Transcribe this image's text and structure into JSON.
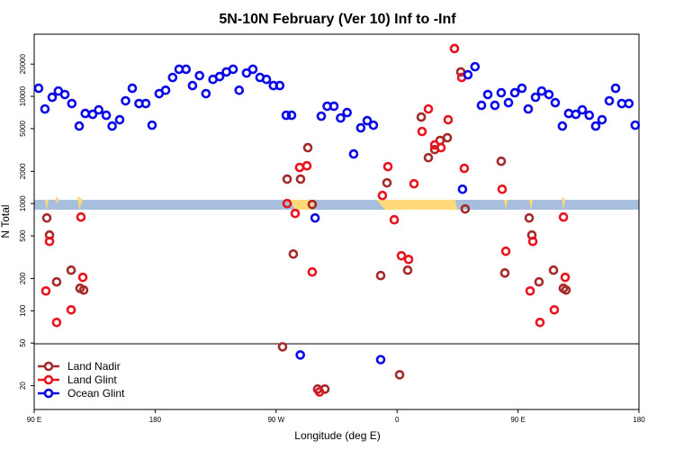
{
  "chart_data": {
    "type": "scatter",
    "title": "5N-10N February (Ver 10)   Inf to -Inf",
    "x_label": "Longitude (deg E)",
    "y_label": "N Total",
    "xlim": [
      90,
      540
    ],
    "ylim": [
      12,
      38000
    ],
    "y_scale": "log",
    "legend": "bottom-left",
    "xticks": [
      {
        "value": 90,
        "label": "90 E"
      },
      {
        "value": 180,
        "label": "180"
      },
      {
        "value": 270,
        "label": "90 W"
      },
      {
        "value": 360,
        "label": "0"
      },
      {
        "value": 450,
        "label": "90 E"
      },
      {
        "value": 540,
        "label": "180"
      }
    ],
    "yticks": [
      20,
      50,
      100,
      200,
      500,
      1000,
      2000,
      5000,
      10000,
      20000
    ],
    "series": [
      {
        "name": "Land Nadir",
        "color": "#a52a2a",
        "x": [
          99.4,
          101.4,
          106.7,
          117.5,
          124.1,
          126.8,
          274.8,
          278.2,
          282.8,
          288.2,
          293.6,
          296.9,
          300.9,
          306.3,
          347.8,
          352.5,
          361.9,
          367.9,
          378,
          383.3,
          388,
          392,
          397.4,
          407.4,
          410.7,
          437.5,
          440.2,
          458.3,
          460.3,
          465.6,
          476.4,
          483.7,
          485.7
        ],
        "values": [
          734,
          508,
          186,
          239,
          162,
          156,
          46.1,
          1690,
          338,
          1690,
          3320,
          981,
          18.6,
          18.6,
          213,
          1560,
          25.3,
          239,
          6410,
          2680,
          3190,
          3880,
          4110,
          16900,
          891,
          2480,
          225,
          734,
          508,
          186,
          239,
          162,
          156
        ]
      },
      {
        "name": "Land Glint",
        "color": "#e8141e",
        "x": [
          98.7,
          101.4,
          106.7,
          117.5,
          124.8,
          126.2,
          278.2,
          284.2,
          287.5,
          292.9,
          296.9,
          302.3,
          349.1,
          353.2,
          357.9,
          363.2,
          368.6,
          372.6,
          378.6,
          383.3,
          388,
          392.7,
          398,
          402.7,
          408.1,
          410,
          438.2,
          440.9,
          459,
          461,
          466.3,
          477,
          483.8,
          485.1
        ],
        "values": [
          153,
          444,
          77.8,
          102,
          748,
          205,
          1000,
          809,
          2170,
          2250,
          230,
          17.5,
          1190,
          2210,
          706,
          326,
          301,
          1530,
          4700,
          7620,
          3520,
          3320,
          6050,
          27900,
          15000,
          2130,
          1360,
          359,
          153,
          444,
          77.8,
          102,
          748,
          205
        ]
      },
      {
        "name": "Ocean Glint",
        "color": "#0a0ae6",
        "x": [
          93.3,
          98,
          103.4,
          108,
          112.8,
          118,
          123.5,
          128,
          133.5,
          138,
          143.6,
          148,
          153.6,
          158,
          163,
          168,
          173,
          177.7,
          183,
          187.8,
          193,
          197.8,
          203,
          207.8,
          213,
          217.8,
          223,
          228,
          233,
          238,
          242.5,
          248,
          252.7,
          258,
          262.8,
          268,
          272.7,
          277.5,
          281.5,
          288,
          299,
          303.6,
          308,
          313,
          318,
          322.8,
          327.7,
          333,
          337.8,
          342.4,
          347.8,
          408.7,
          412.7,
          418,
          422.8,
          427.5,
          432.8,
          437.5,
          442.9,
          447.6,
          452.9,
          457.6,
          463,
          467.6,
          473,
          477.7,
          483,
          487.7,
          493,
          497.8,
          503,
          507.8,
          512.5,
          517.9,
          522.6,
          527.2,
          532.5,
          537.2
        ],
        "values": [
          11900,
          7620,
          9800,
          11200,
          10400,
          8570,
          5280,
          6920,
          6790,
          7480,
          6660,
          5280,
          6050,
          9080,
          11900,
          8570,
          8570,
          5380,
          10600,
          11400,
          15000,
          17900,
          17900,
          12600,
          15600,
          10600,
          14400,
          15300,
          16900,
          17900,
          11400,
          16500,
          17900,
          15000,
          14400,
          12600,
          12600,
          6660,
          6660,
          38.7,
          734,
          6530,
          8090,
          8090,
          6280,
          7060,
          2900,
          5080,
          5930,
          5380,
          35,
          1360,
          15900,
          18900,
          8240,
          10400,
          8240,
          10800,
          8730,
          10800,
          11900,
          7620,
          9800,
          11200,
          10400,
          8730,
          5280,
          6920,
          6790,
          7480,
          6660,
          5280,
          6050,
          9080,
          11900,
          8570,
          8570,
          5380
        ]
      }
    ]
  }
}
